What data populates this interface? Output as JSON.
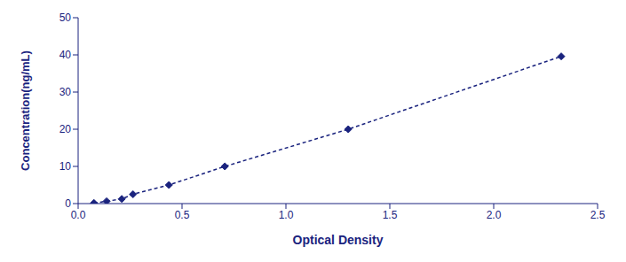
{
  "chart_data": {
    "type": "line",
    "x": [
      0.076,
      0.137,
      0.21,
      0.264,
      0.437,
      0.706,
      1.3,
      2.325
    ],
    "values": [
      0.156,
      0.625,
      1.25,
      2.5,
      5.0,
      10.0,
      20.0,
      39.6
    ],
    "color": "#1a237e",
    "xlabel": "Optical Density",
    "ylabel": "Concentration(ng/mL)",
    "xlim": [
      0,
      2.5
    ],
    "ylim": [
      0,
      50
    ],
    "xticks": [
      {
        "value": 0,
        "label": "0.0"
      },
      0.5,
      {
        "value": 1,
        "label": "1.0"
      },
      1.5,
      {
        "value": 2,
        "label": "2.0"
      },
      2.5
    ],
    "yticks": [
      0,
      10,
      20,
      30,
      40,
      50
    ],
    "marker": "diamond",
    "line_style": "dashed"
  }
}
